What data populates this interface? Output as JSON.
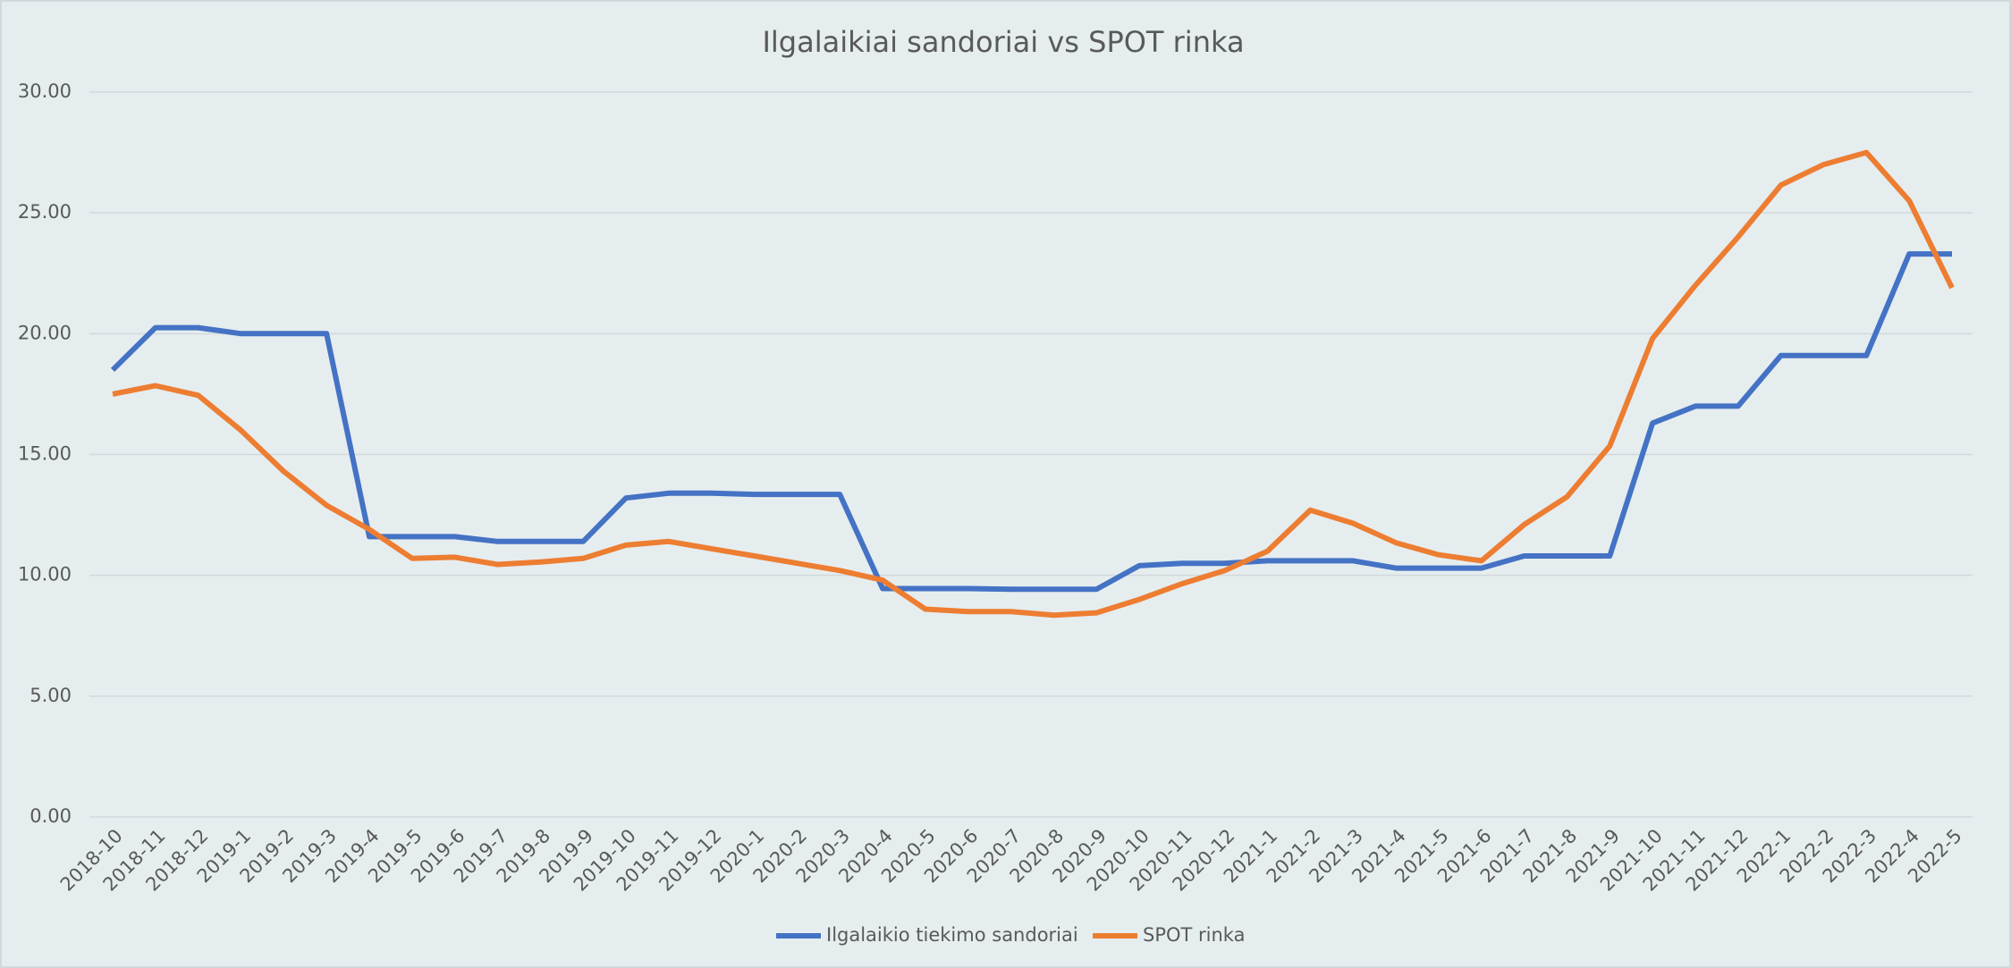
{
  "chart_data": {
    "type": "line",
    "title": "Ilgalaikiai sandoriai vs SPOT rinka",
    "categories": [
      "2018-10",
      "2018-11",
      "2018-12",
      "2019-1",
      "2019-2",
      "2019-3",
      "2019-4",
      "2019-5",
      "2019-6",
      "2019-7",
      "2019-8",
      "2019-9",
      "2019-10",
      "2019-11",
      "2019-12",
      "2020-1",
      "2020-2",
      "2020-3",
      "2020-4",
      "2020-5",
      "2020-6",
      "2020-7",
      "2020-8",
      "2020-9",
      "2020-10",
      "2020-11",
      "2020-12",
      "2021-1",
      "2021-2",
      "2021-3",
      "2021-4",
      "2021-5",
      "2021-6",
      "2021-7",
      "2021-8",
      "2021-9",
      "2021-10",
      "2021-11",
      "2021-12",
      "2022-1",
      "2022-2",
      "2022-3",
      "2022-4",
      "2022-5"
    ],
    "series": [
      {
        "name": "Ilgalaikio tiekimo sandoriai",
        "color": "#4472c4",
        "values": [
          18.5,
          20.25,
          20.25,
          20.0,
          20.0,
          20.0,
          11.6,
          11.6,
          11.6,
          11.4,
          11.4,
          11.4,
          13.2,
          13.4,
          13.4,
          13.35,
          13.35,
          13.35,
          9.45,
          9.45,
          9.45,
          9.42,
          9.42,
          9.42,
          10.4,
          10.5,
          10.5,
          10.6,
          10.6,
          10.6,
          10.3,
          10.3,
          10.3,
          10.8,
          10.8,
          10.8,
          16.3,
          17.0,
          17.0,
          19.1,
          19.1,
          19.1,
          23.3,
          23.3
        ]
      },
      {
        "name": "SPOT rinka",
        "color": "#ed7d31",
        "values": [
          17.5,
          17.85,
          17.45,
          16.0,
          14.3,
          12.9,
          11.9,
          10.7,
          10.75,
          10.45,
          10.55,
          10.7,
          11.25,
          11.4,
          11.1,
          10.8,
          10.5,
          10.2,
          9.8,
          8.6,
          8.5,
          8.5,
          8.35,
          8.45,
          9.0,
          9.65,
          10.2,
          11.0,
          12.7,
          12.15,
          11.35,
          10.85,
          10.6,
          12.1,
          13.25,
          15.35,
          19.8,
          22.0,
          24.0,
          26.15,
          27.0,
          27.5,
          25.5,
          21.9
        ]
      }
    ],
    "ylim": [
      0,
      30
    ],
    "yticks": [
      {
        "value": 0,
        "label": "0.00"
      },
      {
        "value": 5,
        "label": "5.00"
      },
      {
        "value": 10,
        "label": "10.00"
      },
      {
        "value": 15,
        "label": "15.00"
      },
      {
        "value": 20,
        "label": "20.00"
      },
      {
        "value": 25,
        "label": "25.00"
      },
      {
        "value": 30,
        "label": "30.00"
      }
    ],
    "grid": true,
    "legend": "bottom"
  }
}
